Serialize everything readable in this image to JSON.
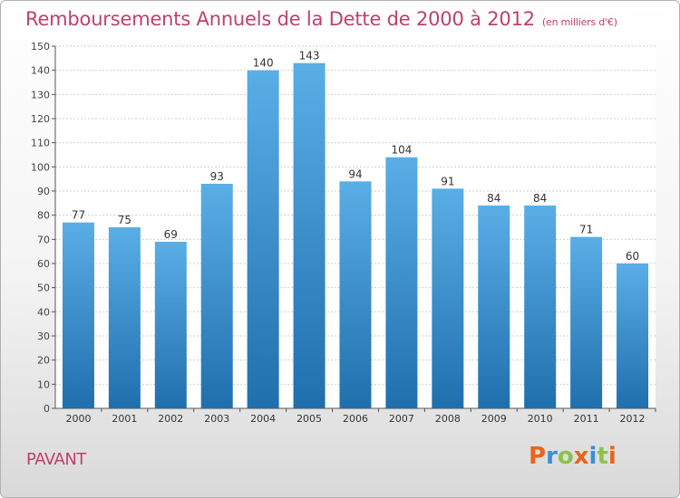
{
  "header": {
    "title": "Remboursements Annuels de la Dette de 2000 à 2012",
    "subtitle": "(en milliers d'€)"
  },
  "footer": {
    "commune": "PAVANT",
    "logo": "Proxiti"
  },
  "colors": {
    "title": "#c0406a",
    "bar_top": "#5aaee6",
    "bar_bottom": "#1f6fad",
    "logo_letters": [
      "#e9651b",
      "#3b8ed8",
      "#8bc34a",
      "#e9651b",
      "#3b8ed8",
      "#8bc34a",
      "#e9651b"
    ]
  },
  "chart_data": {
    "type": "bar",
    "categories": [
      "2000",
      "2001",
      "2002",
      "2003",
      "2004",
      "2005",
      "2006",
      "2007",
      "2008",
      "2009",
      "2010",
      "2011",
      "2012"
    ],
    "values": [
      77,
      75,
      69,
      93,
      140,
      143,
      94,
      104,
      91,
      84,
      84,
      71,
      60
    ],
    "data_labels": [
      "77",
      "75",
      "69",
      "93",
      "140",
      "143",
      "94",
      "104",
      "91",
      "84",
      "84",
      "71",
      "60"
    ],
    "ylim": [
      0,
      150
    ],
    "yticks": [
      0,
      10,
      20,
      30,
      40,
      50,
      60,
      70,
      80,
      90,
      100,
      110,
      120,
      130,
      140,
      150
    ],
    "grid": true,
    "xlabel": "",
    "ylabel": ""
  }
}
